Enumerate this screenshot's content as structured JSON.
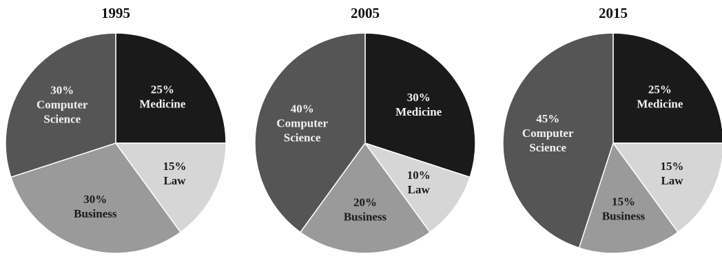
{
  "chart_data": [
    {
      "type": "pie",
      "title": "1995",
      "slices": [
        {
          "category": "Medicine",
          "value": 25,
          "percent_label": "25%",
          "name_lines": [
            "Medicine"
          ],
          "color": "#1a1a1a",
          "text_color": "#f2f2f2"
        },
        {
          "category": "Law",
          "value": 15,
          "percent_label": "15%",
          "name_lines": [
            "Law"
          ],
          "color": "#d6d6d6",
          "text_color": "#1a1a1a"
        },
        {
          "category": "Business",
          "value": 30,
          "percent_label": "30%",
          "name_lines": [
            "Business"
          ],
          "color": "#9a9a9a",
          "text_color": "#1a1a1a"
        },
        {
          "category": "Computer Science",
          "value": 30,
          "percent_label": "30%",
          "name_lines": [
            "Computer",
            "Science"
          ],
          "color": "#555555",
          "text_color": "#f2f2f2"
        }
      ]
    },
    {
      "type": "pie",
      "title": "2005",
      "slices": [
        {
          "category": "Medicine",
          "value": 30,
          "percent_label": "30%",
          "name_lines": [
            "Medicine"
          ],
          "color": "#1a1a1a",
          "text_color": "#f2f2f2"
        },
        {
          "category": "Law",
          "value": 10,
          "percent_label": "10%",
          "name_lines": [
            "Law"
          ],
          "color": "#d6d6d6",
          "text_color": "#1a1a1a"
        },
        {
          "category": "Business",
          "value": 20,
          "percent_label": "20%",
          "name_lines": [
            "Business"
          ],
          "color": "#9a9a9a",
          "text_color": "#1a1a1a"
        },
        {
          "category": "Computer Science",
          "value": 40,
          "percent_label": "40%",
          "name_lines": [
            "Computer",
            "Science"
          ],
          "color": "#555555",
          "text_color": "#f2f2f2"
        }
      ]
    },
    {
      "type": "pie",
      "title": "2015",
      "slices": [
        {
          "category": "Medicine",
          "value": 25,
          "percent_label": "25%",
          "name_lines": [
            "Medicine"
          ],
          "color": "#1a1a1a",
          "text_color": "#f2f2f2"
        },
        {
          "category": "Law",
          "value": 15,
          "percent_label": "15%",
          "name_lines": [
            "Law"
          ],
          "color": "#d6d6d6",
          "text_color": "#1a1a1a"
        },
        {
          "category": "Business",
          "value": 15,
          "percent_label": "15%",
          "name_lines": [
            "Business"
          ],
          "color": "#9a9a9a",
          "text_color": "#1a1a1a"
        },
        {
          "category": "Computer Science",
          "value": 45,
          "percent_label": "45%",
          "name_lines": [
            "Computer",
            "Science"
          ],
          "color": "#555555",
          "text_color": "#f2f2f2"
        }
      ]
    }
  ]
}
